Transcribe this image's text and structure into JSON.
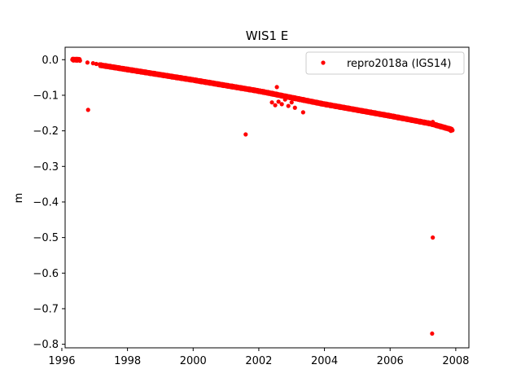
{
  "chart_data": {
    "type": "scatter",
    "title": "WIS1 E",
    "xlabel": "",
    "ylabel": "m",
    "xlim": [
      1996.1,
      2008.4
    ],
    "ylim": [
      -0.81,
      0.035
    ],
    "xticks": [
      1996,
      1998,
      2000,
      2002,
      2004,
      2006,
      2008
    ],
    "yticks": [
      0.0,
      -0.1,
      -0.2,
      -0.3,
      -0.4,
      -0.5,
      -0.6,
      -0.7,
      -0.8
    ],
    "ytick_labels": [
      "0.0",
      "−0.1",
      "−0.2",
      "−0.3",
      "−0.4",
      "−0.5",
      "−0.6",
      "−0.7",
      "−0.8"
    ],
    "legend_position": "top-right",
    "grid": false,
    "series": [
      {
        "name": "repro2018a (IGS14)",
        "color": "#ff0000",
        "marker": "circle",
        "trend": {
          "segments": [
            [
              1996.32,
              0.0,
              1996.55,
              0.0
            ],
            [
              1997.15,
              -0.015,
              2000.0,
              -0.057
            ],
            [
              2000.0,
              -0.057,
              2002.0,
              -0.088
            ],
            [
              2002.0,
              -0.088,
              2004.0,
              -0.125
            ],
            [
              2004.0,
              -0.125,
              2006.0,
              -0.158
            ],
            [
              2006.0,
              -0.158,
              2007.25,
              -0.18
            ],
            [
              2007.25,
              -0.18,
              2007.9,
              -0.197
            ]
          ]
        },
        "points": [
          [
            1996.35,
            0.002
          ],
          [
            1996.4,
            0.001
          ],
          [
            1996.45,
            -0.002
          ],
          [
            1996.5,
            0.0
          ],
          [
            1996.55,
            -0.003
          ],
          [
            1996.78,
            -0.008
          ],
          [
            1996.95,
            -0.01
          ],
          [
            1997.05,
            -0.012
          ],
          [
            1996.8,
            -0.141
          ],
          [
            2001.6,
            -0.21
          ],
          [
            2002.55,
            -0.077
          ],
          [
            2002.4,
            -0.12
          ],
          [
            2002.5,
            -0.128
          ],
          [
            2002.6,
            -0.118
          ],
          [
            2002.7,
            -0.125
          ],
          [
            2002.8,
            -0.112
          ],
          [
            2002.9,
            -0.13
          ],
          [
            2003.0,
            -0.12
          ],
          [
            2003.1,
            -0.135
          ],
          [
            2003.35,
            -0.148
          ],
          [
            2007.3,
            -0.175
          ],
          [
            2007.35,
            -0.182
          ],
          [
            2007.6,
            -0.19
          ],
          [
            2007.85,
            -0.2
          ],
          [
            2007.3,
            -0.5
          ],
          [
            2007.28,
            -0.77
          ]
        ]
      }
    ]
  }
}
